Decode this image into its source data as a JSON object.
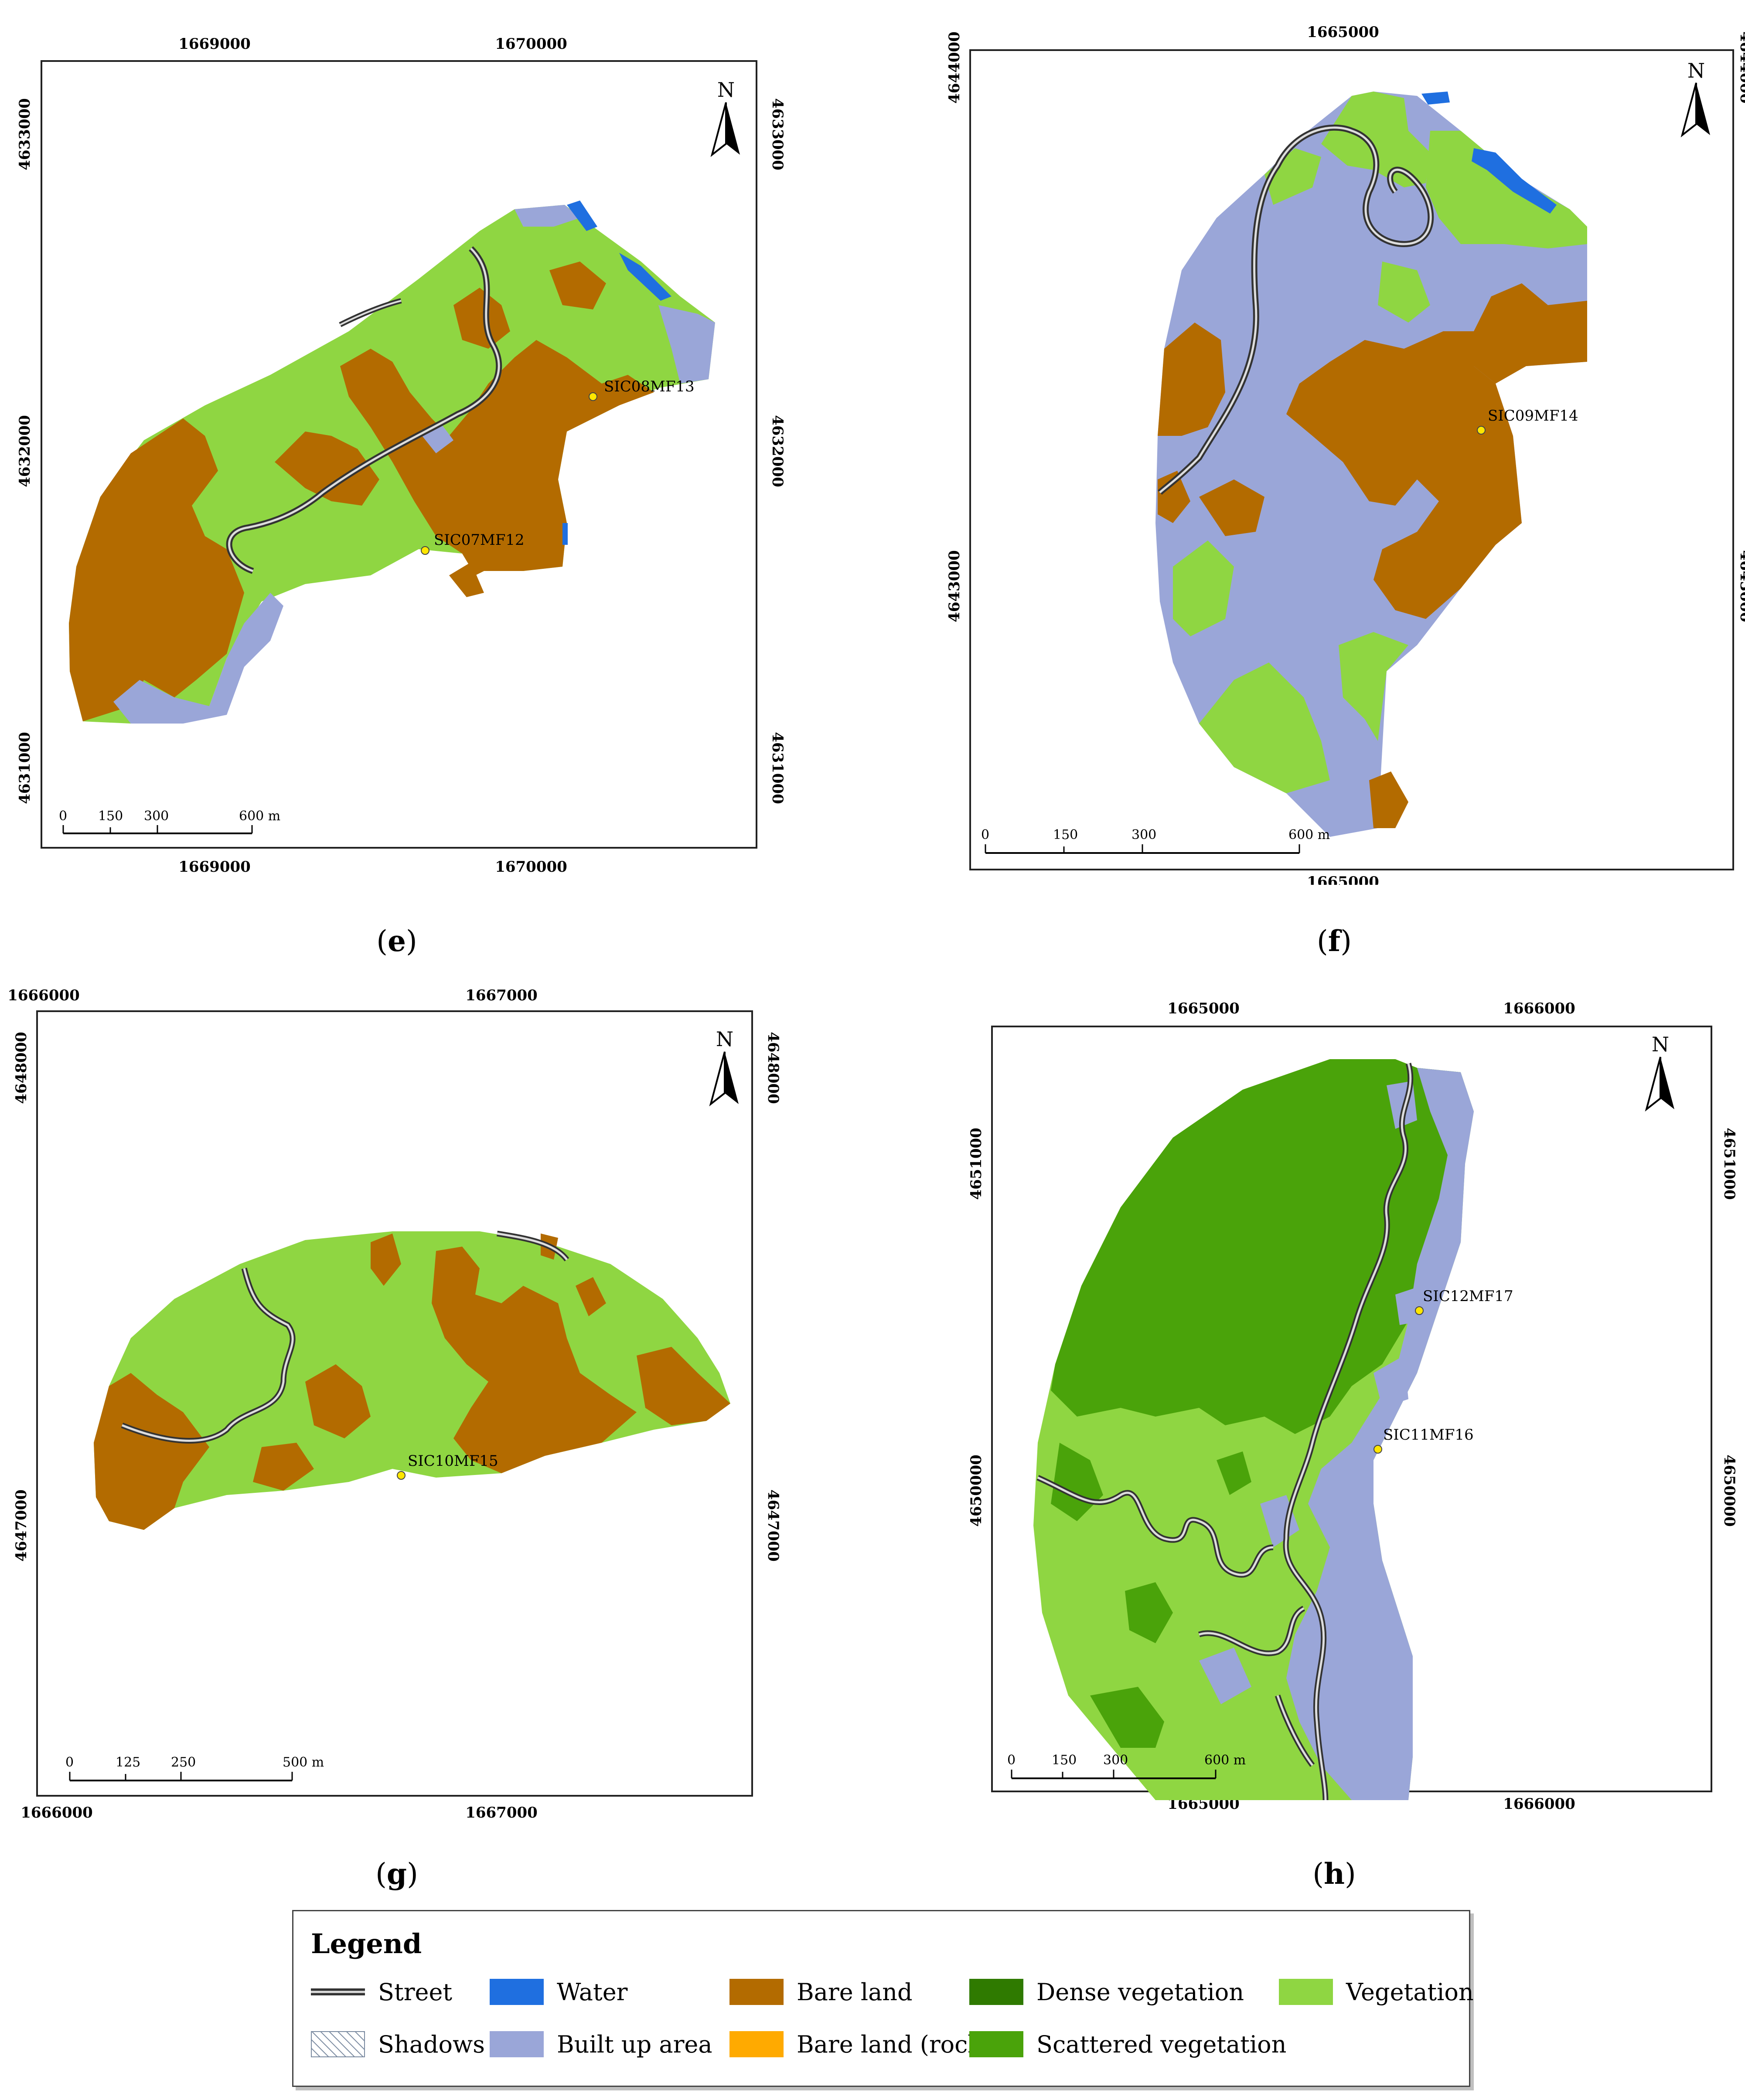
{
  "panels": [
    {
      "id": "e",
      "label": "e",
      "x_ticks_top": [
        "1669000",
        "1670000"
      ],
      "x_ticks_bottom": [
        "1669000",
        "1670000"
      ],
      "y_ticks": [
        "4633000",
        "4632000",
        "4631000"
      ],
      "north": "N",
      "scale": {
        "labels": [
          "0",
          "150",
          "300",
          "600 m"
        ],
        "max_m": 600
      },
      "sites": [
        "SIC08MF13",
        "SIC07MF12"
      ],
      "classes": [
        "Vegetation",
        "Bare land",
        "Built up area",
        "Water",
        "Street"
      ]
    },
    {
      "id": "f",
      "label": "f",
      "x_ticks_top": [
        "1665000"
      ],
      "x_ticks_bottom": [
        "1665000"
      ],
      "y_ticks": [
        "4644000",
        "4643000"
      ],
      "north": "N",
      "scale": {
        "labels": [
          "0",
          "150",
          "300",
          "600 m"
        ],
        "max_m": 600
      },
      "sites": [
        "SIC09MF14"
      ],
      "classes": [
        "Vegetation",
        "Bare land",
        "Built up area",
        "Water",
        "Street"
      ]
    },
    {
      "id": "g",
      "label": "g",
      "x_ticks_top": [
        "1666000",
        "1667000"
      ],
      "x_ticks_bottom": [
        "1666000",
        "1667000"
      ],
      "y_ticks": [
        "4648000",
        "4647000"
      ],
      "north": "N",
      "scale": {
        "labels": [
          "0",
          "125",
          "250",
          "500 m"
        ],
        "max_m": 500
      },
      "sites": [
        "SIC10MF15"
      ],
      "classes": [
        "Vegetation",
        "Bare land",
        "Street"
      ]
    },
    {
      "id": "h",
      "label": "h",
      "x_ticks_top": [
        "1665000",
        "1666000"
      ],
      "x_ticks_bottom": [
        "1665000",
        "1666000"
      ],
      "y_ticks": [
        "4651000",
        "4650000"
      ],
      "north": "N",
      "scale": {
        "labels": [
          "0",
          "150",
          "300",
          "600 m"
        ],
        "max_m": 600
      },
      "sites": [
        "SIC12MF17",
        "SIC11MF16"
      ],
      "classes": [
        "Scattered vegetation",
        "Vegetation",
        "Built up area",
        "Street"
      ]
    }
  ],
  "legend": {
    "title": "Legend",
    "items": [
      {
        "label": "Street",
        "swatch": "street"
      },
      {
        "label": "Water",
        "swatch": "#1f6fe0"
      },
      {
        "label": "Bare land",
        "swatch": "#b36b00"
      },
      {
        "label": "Dense vegetation",
        "swatch": "#2f7a00"
      },
      {
        "label": "Vegetation",
        "swatch": "#8fd642"
      },
      {
        "label": "Shadows",
        "swatch": "shadows"
      },
      {
        "label": "Built up area",
        "swatch": "#9aa6d8"
      },
      {
        "label": "Bare land (rocks)",
        "swatch": "#ffaa00"
      },
      {
        "label": "Scattered vegetation",
        "swatch": "#4aa30a"
      }
    ]
  },
  "colors": {
    "vegetation": "#8fd642",
    "bare": "#b36b00",
    "built": "#9aa6d8",
    "water": "#1f6fe0",
    "dense": "#2f7a00",
    "scattered": "#4aa30a",
    "rocks": "#ffaa00",
    "site": "#ffe600"
  }
}
